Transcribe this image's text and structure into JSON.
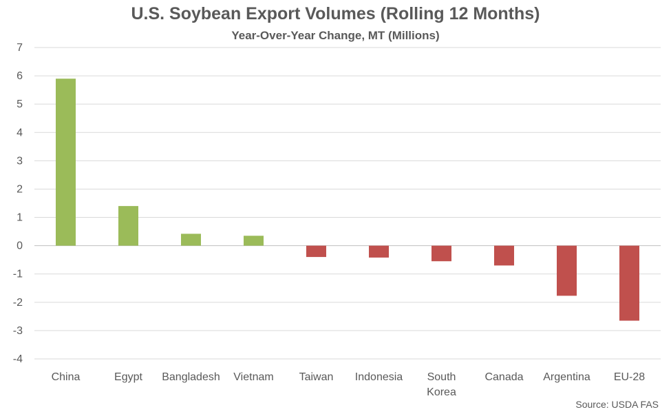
{
  "chart_data": {
    "type": "bar",
    "title": "U.S. Soybean Export Volumes (Rolling 12 Months)",
    "subtitle": "Year-Over-Year Change, MT (Millions)",
    "source": "Source: USDA FAS",
    "categories": [
      "China",
      "Egypt",
      "Bangladesh",
      "Vietnam",
      "Taiwan",
      "Indonesia",
      "South Korea",
      "Canada",
      "Argentina",
      "EU-28"
    ],
    "values": [
      5.9,
      1.4,
      0.42,
      0.35,
      -0.4,
      -0.42,
      -0.55,
      -0.7,
      -1.77,
      -2.65
    ],
    "ylim": [
      -4,
      7
    ],
    "yticks": [
      7,
      6,
      5,
      4,
      3,
      2,
      1,
      0,
      -1,
      -2,
      -3,
      -4
    ],
    "grid": true,
    "legend": "none",
    "colors": {
      "positive": "#9bbb59",
      "negative": "#c0504d",
      "grid": "#d9d9d9",
      "axis": "#bfbfbf"
    }
  }
}
